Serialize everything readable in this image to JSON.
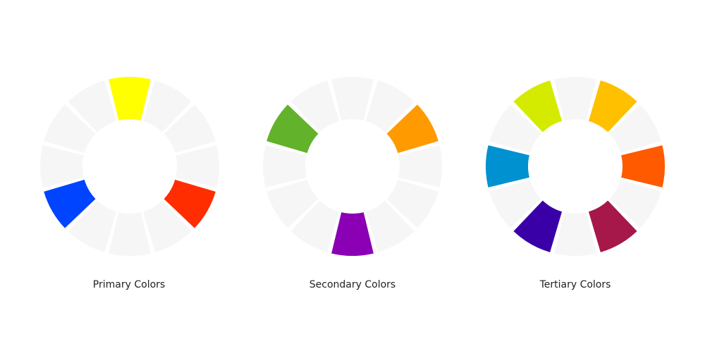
{
  "wheels": [
    {
      "caption": "Primary Colors",
      "segments": [
        "#ffff00",
        "#f6f6f6",
        "#f6f6f6",
        "#f6f6f6",
        "#ff2d00",
        "#f6f6f6",
        "#f6f6f6",
        "#f6f6f6",
        "#0044ff",
        "#f6f6f6",
        "#f6f6f6",
        "#f6f6f6"
      ]
    },
    {
      "caption": "Secondary Colors",
      "segments": [
        "#f6f6f6",
        "#f6f6f6",
        "#ff9a00",
        "#f6f6f6",
        "#f6f6f6",
        "#f6f6f6",
        "#8b00b5",
        "#f6f6f6",
        "#f6f6f6",
        "#f6f6f6",
        "#62b22b",
        "#f6f6f6"
      ]
    },
    {
      "caption": "Tertiary Colors",
      "segments": [
        "#f6f6f6",
        "#ffc000",
        "#f6f6f6",
        "#ff5a00",
        "#f6f6f6",
        "#a6174a",
        "#f6f6f6",
        "#3a00a8",
        "#f6f6f6",
        "#0091d0",
        "#f6f6f6",
        "#d4eb00"
      ]
    }
  ]
}
